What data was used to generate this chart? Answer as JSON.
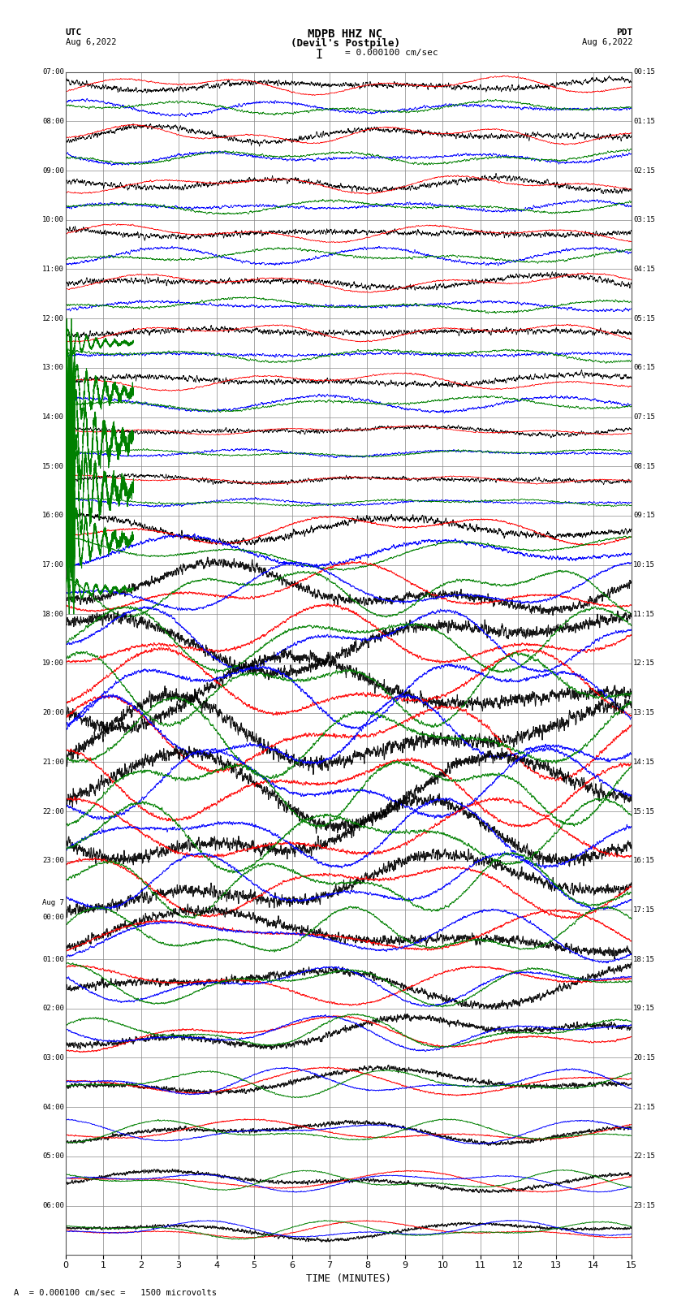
{
  "title_line1": "MDPB HHZ NC",
  "title_line2": "(Devil's Postpile)",
  "scale_text": "I = 0.000100 cm/sec",
  "utc_label": "UTC",
  "utc_date": "Aug 6,2022",
  "pdt_label": "PDT",
  "pdt_date": "Aug 6,2022",
  "bottom_label": "A  = 0.000100 cm/sec =   1500 microvolts",
  "xlabel": "TIME (MINUTES)",
  "left_times": [
    "07:00",
    "08:00",
    "09:00",
    "10:00",
    "11:00",
    "12:00",
    "13:00",
    "14:00",
    "15:00",
    "16:00",
    "17:00",
    "18:00",
    "19:00",
    "20:00",
    "21:00",
    "22:00",
    "23:00",
    "Aug 7\n00:00",
    "01:00",
    "02:00",
    "03:00",
    "04:00",
    "05:00",
    "06:00"
  ],
  "right_times": [
    "00:15",
    "01:15",
    "02:15",
    "03:15",
    "04:15",
    "05:15",
    "06:15",
    "07:15",
    "08:15",
    "09:15",
    "10:15",
    "11:15",
    "12:15",
    "13:15",
    "14:15",
    "15:15",
    "16:15",
    "17:15",
    "18:15",
    "19:15",
    "20:15",
    "21:15",
    "22:15",
    "23:15"
  ],
  "num_rows": 24,
  "minutes": 15,
  "bg_color": "#ffffff",
  "grid_color": "#888888",
  "colors": [
    "black",
    "red",
    "blue",
    "green"
  ],
  "figsize": [
    8.5,
    16.13
  ],
  "dpi": 100
}
